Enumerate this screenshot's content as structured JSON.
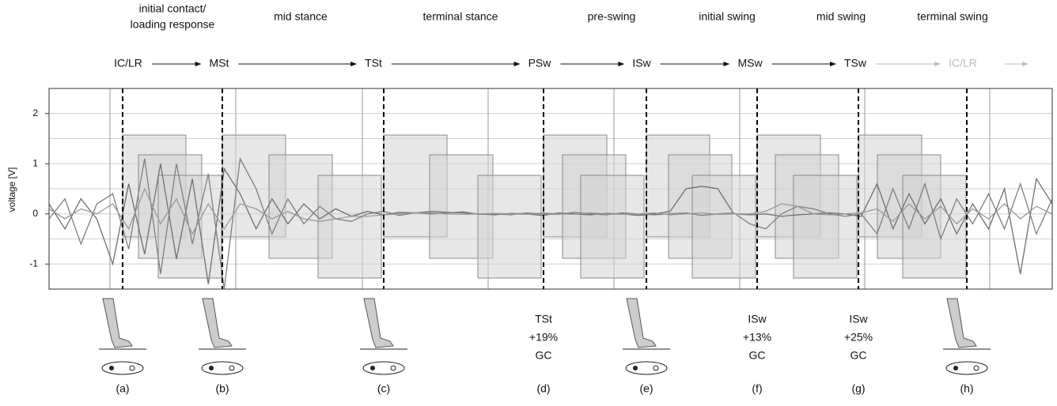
{
  "chart_data": {
    "type": "line",
    "ylabel": "voltage [V]",
    "ylim": [
      -1.5,
      2.5
    ],
    "yticks": [
      -1,
      0,
      1,
      2
    ],
    "minor_yticks": [
      -0.5,
      0.5,
      1.5
    ],
    "grid": true,
    "phases": [
      {
        "lines": [
          "initial contact/",
          "loading response"
        ]
      },
      {
        "lines": [
          "mid stance"
        ]
      },
      {
        "lines": [
          "terminal stance"
        ]
      },
      {
        "lines": [
          "pre-swing"
        ]
      },
      {
        "lines": [
          "initial swing"
        ]
      },
      {
        "lines": [
          "mid swing"
        ]
      },
      {
        "lines": [
          "terminal swing"
        ]
      }
    ],
    "events": [
      {
        "abbr": "IC/LR",
        "color": "#111"
      },
      {
        "abbr": "MSt",
        "color": "#111"
      },
      {
        "abbr": "TSt",
        "color": "#111"
      },
      {
        "abbr": "PSw",
        "color": "#111"
      },
      {
        "abbr": "ISw",
        "color": "#111"
      },
      {
        "abbr": "MSw",
        "color": "#111"
      },
      {
        "abbr": "TSw",
        "color": "#111"
      },
      {
        "abbr": "IC/LR",
        "color": "#bbbbbb"
      }
    ],
    "panels": [
      {
        "label": "(a)"
      },
      {
        "label": "(b)"
      },
      {
        "label": "(c)"
      },
      {
        "label": "(d)",
        "note": [
          "TSt",
          "+19%",
          "GC"
        ]
      },
      {
        "label": "(e)"
      },
      {
        "label": "(f)",
        "note": [
          "ISw",
          "+13%",
          "GC"
        ]
      },
      {
        "label": "(g)",
        "note": [
          "ISw",
          "+25%",
          "GC"
        ]
      },
      {
        "label": "(h)"
      }
    ],
    "series": [
      {
        "color": "#6f6f6f",
        "values": [
          0.2,
          -0.3,
          0.3,
          -0.1,
          -1.0,
          0.6,
          -0.8,
          1.0,
          -0.9,
          0.7,
          -1.4,
          0.9,
          0.4,
          -0.3,
          0.3,
          -0.2,
          0.2,
          -0.1,
          0.1,
          -0.05,
          0.05,
          -0.02,
          0.03,
          0.02,
          0.05,
          0.03,
          0.02,
          0.0,
          -0.02,
          0.01,
          0.0,
          -0.03,
          0.02,
          0.0,
          -0.02,
          0.01,
          0.0,
          -0.03,
          0.0,
          0.05,
          0.5,
          0.55,
          0.5,
          0.0,
          -0.02,
          0.0,
          -0.05,
          -0.02,
          0.0,
          0.02,
          0.0,
          -0.05,
          0.6,
          -0.3,
          0.4,
          -0.2,
          0.3,
          -0.4,
          0.2,
          -0.3,
          0.5,
          -1.2,
          0.7,
          0.2
        ]
      },
      {
        "color": "#7f7f7f",
        "values": [
          -0.1,
          0.3,
          -0.6,
          0.2,
          0.4,
          -0.7,
          1.1,
          -1.2,
          1.0,
          -0.6,
          0.8,
          -1.5,
          1.1,
          0.5,
          -0.4,
          0.3,
          -0.2,
          0.15,
          -0.1,
          -0.15,
          0.0,
          0.05,
          -0.03,
          0.02,
          0.0,
          0.02,
          0.04,
          -0.01,
          0.0,
          -0.02,
          0.02,
          0.0,
          -0.01,
          0.03,
          0.0,
          -0.02,
          0.02,
          0.0,
          -0.02,
          0.0,
          0.02,
          -0.03,
          0.0,
          0.02,
          -0.2,
          -0.3,
          0.0,
          0.15,
          0.1,
          0.0,
          -0.05,
          0.0,
          -0.4,
          0.5,
          -0.3,
          0.6,
          -0.5,
          0.3,
          -0.2,
          0.4,
          -0.3,
          0.6,
          -0.4,
          0.3
        ]
      },
      {
        "color": "#999999",
        "values": [
          0.1,
          -0.1,
          0.1,
          0.0,
          0.2,
          -0.3,
          0.5,
          -0.2,
          0.3,
          -0.4,
          0.2,
          -0.3,
          0.2,
          0.1,
          -0.1,
          0.05,
          -0.1,
          -0.15,
          -0.1,
          -0.05,
          -0.05,
          -0.02,
          0.0,
          0.02,
          0.02,
          0.0,
          -0.01,
          0.0,
          0.01,
          0.0,
          -0.01,
          0.02,
          0.0,
          -0.01,
          0.02,
          0.0,
          -0.01,
          0.0,
          0.02,
          -0.02,
          0.0,
          0.02,
          -0.01,
          0.0,
          0.0,
          0.05,
          0.2,
          0.15,
          0.0,
          -0.02,
          0.0,
          0.02,
          0.1,
          -0.15,
          0.2,
          -0.1,
          0.15,
          -0.2,
          0.1,
          -0.1,
          0.2,
          -0.1,
          0.15,
          0.0
        ]
      }
    ]
  }
}
